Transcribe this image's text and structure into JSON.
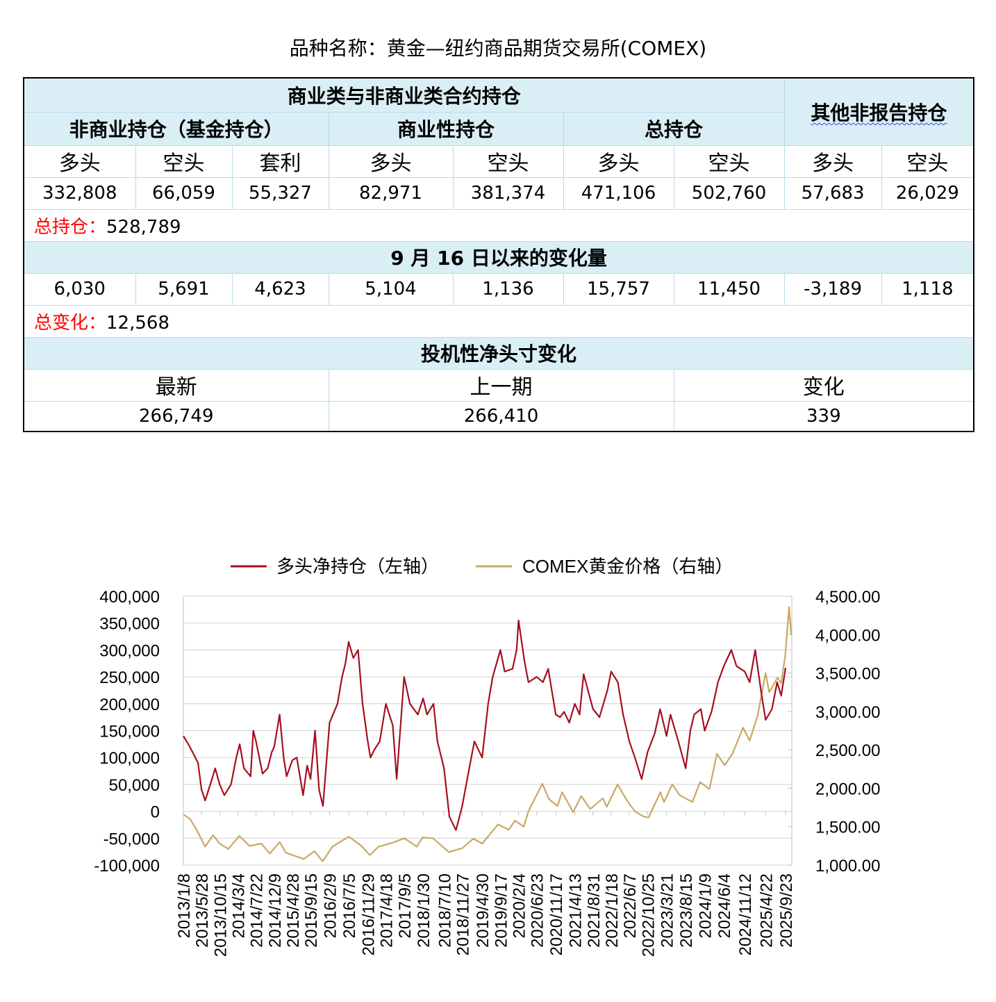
{
  "page_title": "品种名称：黄金—纽约商品期货交易所(COMEX)",
  "table": {
    "group_header": "商业类与非商业类合约持仓",
    "other_header": "其他非报告持仓",
    "noncommercial_header": "非商业持仓（基金持仓）",
    "commercial_header": "商业性持仓",
    "total_header": "总持仓",
    "col_long": "多头",
    "col_short": "空头",
    "col_spread": "套利",
    "positions": {
      "nc_long": "332,808",
      "nc_short": "66,059",
      "nc_spread": "55,327",
      "c_long": "82,971",
      "c_short": "381,374",
      "t_long": "471,106",
      "t_short": "502,760",
      "o_long": "57,683",
      "o_short": "26,029"
    },
    "total_oi_label": "总持仓：",
    "total_oi_value": "528,789",
    "change_header": "9 月 16 日以来的变化量",
    "changes": {
      "nc_long": "6,030",
      "nc_short": "5,691",
      "nc_spread": "4,623",
      "c_long": "5,104",
      "c_short": "1,136",
      "t_long": "15,757",
      "t_short": "11,450",
      "o_long": "-3,189",
      "o_short": "1,118"
    },
    "total_change_label": "总变化：",
    "total_change_value": "12,568",
    "net_header": "投机性净头寸变化",
    "net_cols": [
      "最新",
      "上一期",
      "变化"
    ],
    "net_values": [
      "266,749",
      "266,410",
      "339"
    ]
  },
  "chart_data": {
    "type": "line",
    "legend_position": "top",
    "grid": true,
    "colors": {
      "net_long": "#a50f1e",
      "gold": "#c9a865"
    },
    "series": [
      {
        "name": "多头净持仓（左轴）",
        "axis": "left",
        "points": [
          [
            "2013-01-08",
            140000
          ],
          [
            "2013-02-15",
            125000
          ],
          [
            "2013-03-20",
            110000
          ],
          [
            "2013-05-01",
            90000
          ],
          [
            "2013-05-28",
            40000
          ],
          [
            "2013-06-25",
            20000
          ],
          [
            "2013-08-10",
            55000
          ],
          [
            "2013-09-10",
            80000
          ],
          [
            "2013-10-15",
            50000
          ],
          [
            "2013-11-20",
            30000
          ],
          [
            "2014-01-10",
            50000
          ],
          [
            "2014-02-20",
            100000
          ],
          [
            "2014-03-18",
            125000
          ],
          [
            "2014-04-20",
            80000
          ],
          [
            "2014-06-10",
            65000
          ],
          [
            "2014-07-01",
            150000
          ],
          [
            "2014-07-22",
            130000
          ],
          [
            "2014-09-10",
            70000
          ],
          [
            "2014-10-20",
            80000
          ],
          [
            "2014-11-20",
            110000
          ],
          [
            "2014-12-09",
            120000
          ],
          [
            "2015-01-20",
            180000
          ],
          [
            "2015-02-20",
            100000
          ],
          [
            "2015-03-15",
            65000
          ],
          [
            "2015-04-28",
            95000
          ],
          [
            "2015-06-01",
            100000
          ],
          [
            "2015-07-20",
            30000
          ],
          [
            "2015-08-20",
            85000
          ],
          [
            "2015-09-15",
            60000
          ],
          [
            "2015-10-20",
            150000
          ],
          [
            "2015-11-20",
            40000
          ],
          [
            "2015-12-20",
            10000
          ],
          [
            "2016-02-09",
            165000
          ],
          [
            "2016-04-10",
            200000
          ],
          [
            "2016-05-15",
            250000
          ],
          [
            "2016-06-10",
            275000
          ],
          [
            "2016-07-05",
            315000
          ],
          [
            "2016-08-10",
            285000
          ],
          [
            "2016-09-15",
            300000
          ],
          [
            "2016-10-20",
            200000
          ],
          [
            "2016-11-29",
            130000
          ],
          [
            "2016-12-20",
            100000
          ],
          [
            "2017-01-20",
            115000
          ],
          [
            "2017-03-01",
            130000
          ],
          [
            "2017-04-18",
            200000
          ],
          [
            "2017-06-10",
            160000
          ],
          [
            "2017-07-10",
            60000
          ],
          [
            "2017-09-05",
            250000
          ],
          [
            "2017-10-20",
            200000
          ],
          [
            "2017-12-20",
            180000
          ],
          [
            "2018-01-30",
            210000
          ],
          [
            "2018-03-01",
            180000
          ],
          [
            "2018-04-20",
            200000
          ],
          [
            "2018-05-20",
            130000
          ],
          [
            "2018-07-10",
            80000
          ],
          [
            "2018-08-20",
            -10000
          ],
          [
            "2018-10-10",
            -35000
          ],
          [
            "2018-11-27",
            10000
          ],
          [
            "2019-01-20",
            80000
          ],
          [
            "2019-03-01",
            130000
          ],
          [
            "2019-04-30",
            100000
          ],
          [
            "2019-06-15",
            200000
          ],
          [
            "2019-07-20",
            250000
          ],
          [
            "2019-09-17",
            300000
          ],
          [
            "2019-10-20",
            260000
          ],
          [
            "2019-12-20",
            265000
          ],
          [
            "2020-01-20",
            300000
          ],
          [
            "2020-02-04",
            355000
          ],
          [
            "2020-03-20",
            280000
          ],
          [
            "2020-04-20",
            240000
          ],
          [
            "2020-06-23",
            250000
          ],
          [
            "2020-08-10",
            240000
          ],
          [
            "2020-09-20",
            265000
          ],
          [
            "2020-11-17",
            180000
          ],
          [
            "2020-12-20",
            175000
          ],
          [
            "2021-01-20",
            185000
          ],
          [
            "2021-03-01",
            165000
          ],
          [
            "2021-04-13",
            200000
          ],
          [
            "2021-05-20",
            180000
          ],
          [
            "2021-06-20",
            255000
          ],
          [
            "2021-08-31",
            190000
          ],
          [
            "2021-10-20",
            175000
          ],
          [
            "2021-12-20",
            225000
          ],
          [
            "2022-01-18",
            260000
          ],
          [
            "2022-03-10",
            240000
          ],
          [
            "2022-04-20",
            180000
          ],
          [
            "2022-06-07",
            130000
          ],
          [
            "2022-07-20",
            100000
          ],
          [
            "2022-09-10",
            60000
          ],
          [
            "2022-10-25",
            110000
          ],
          [
            "2022-12-20",
            145000
          ],
          [
            "2023-01-30",
            190000
          ],
          [
            "2023-03-21",
            140000
          ],
          [
            "2023-04-20",
            180000
          ],
          [
            "2023-06-20",
            130000
          ],
          [
            "2023-08-15",
            80000
          ],
          [
            "2023-09-20",
            150000
          ],
          [
            "2023-10-20",
            180000
          ],
          [
            "2023-12-10",
            190000
          ],
          [
            "2024-01-09",
            150000
          ],
          [
            "2024-03-01",
            185000
          ],
          [
            "2024-04-20",
            240000
          ],
          [
            "2024-06-04",
            270000
          ],
          [
            "2024-08-01",
            300000
          ],
          [
            "2024-09-10",
            270000
          ],
          [
            "2024-11-12",
            260000
          ],
          [
            "2024-12-20",
            240000
          ],
          [
            "2025-02-01",
            300000
          ],
          [
            "2025-03-20",
            220000
          ],
          [
            "2025-04-22",
            170000
          ],
          [
            "2025-06-10",
            190000
          ],
          [
            "2025-07-20",
            240000
          ],
          [
            "2025-08-20",
            215000
          ],
          [
            "2025-09-23",
            266749
          ]
        ]
      },
      {
        "name": "COMEX黄金价格（右轴）",
        "axis": "right",
        "points": [
          [
            "2013-01-08",
            1660
          ],
          [
            "2013-03-01",
            1600
          ],
          [
            "2013-04-20",
            1460
          ],
          [
            "2013-06-25",
            1240
          ],
          [
            "2013-08-25",
            1390
          ],
          [
            "2013-10-15",
            1280
          ],
          [
            "2013-12-20",
            1210
          ],
          [
            "2014-03-15",
            1380
          ],
          [
            "2014-06-01",
            1250
          ],
          [
            "2014-09-01",
            1280
          ],
          [
            "2014-11-05",
            1150
          ],
          [
            "2015-01-20",
            1300
          ],
          [
            "2015-03-10",
            1160
          ],
          [
            "2015-07-24",
            1080
          ],
          [
            "2015-10-15",
            1180
          ],
          [
            "2015-12-17",
            1050
          ],
          [
            "2016-03-01",
            1240
          ],
          [
            "2016-07-06",
            1370
          ],
          [
            "2016-10-05",
            1260
          ],
          [
            "2016-12-15",
            1130
          ],
          [
            "2017-02-20",
            1240
          ],
          [
            "2017-06-06",
            1290
          ],
          [
            "2017-09-08",
            1350
          ],
          [
            "2017-12-12",
            1240
          ],
          [
            "2018-01-25",
            1360
          ],
          [
            "2018-04-15",
            1350
          ],
          [
            "2018-08-16",
            1170
          ],
          [
            "2018-11-27",
            1220
          ],
          [
            "2019-02-20",
            1345
          ],
          [
            "2019-05-01",
            1280
          ],
          [
            "2019-08-30",
            1530
          ],
          [
            "2019-11-20",
            1460
          ],
          [
            "2020-01-08",
            1580
          ],
          [
            "2020-03-15",
            1500
          ],
          [
            "2020-04-20",
            1700
          ],
          [
            "2020-08-06",
            2060
          ],
          [
            "2020-09-25",
            1860
          ],
          [
            "2020-11-30",
            1770
          ],
          [
            "2021-01-05",
            1950
          ],
          [
            "2021-03-31",
            1690
          ],
          [
            "2021-06-01",
            1900
          ],
          [
            "2021-08-10",
            1730
          ],
          [
            "2021-11-15",
            1870
          ],
          [
            "2021-12-15",
            1760
          ],
          [
            "2022-03-08",
            2050
          ],
          [
            "2022-05-20",
            1840
          ],
          [
            "2022-07-20",
            1700
          ],
          [
            "2022-09-27",
            1630
          ],
          [
            "2022-11-03",
            1620
          ],
          [
            "2023-02-01",
            1950
          ],
          [
            "2023-03-01",
            1820
          ],
          [
            "2023-05-04",
            2050
          ],
          [
            "2023-06-30",
            1910
          ],
          [
            "2023-10-06",
            1820
          ],
          [
            "2023-12-04",
            2080
          ],
          [
            "2024-02-14",
            1990
          ],
          [
            "2024-04-12",
            2450
          ],
          [
            "2024-06-10",
            2300
          ],
          [
            "2024-08-10",
            2450
          ],
          [
            "2024-10-30",
            2790
          ],
          [
            "2024-12-20",
            2620
          ],
          [
            "2025-02-20",
            2950
          ],
          [
            "2025-04-22",
            3500
          ],
          [
            "2025-05-20",
            3250
          ],
          [
            "2025-07-23",
            3440
          ],
          [
            "2025-08-20",
            3370
          ],
          [
            "2025-09-20",
            3720
          ],
          [
            "2025-10-20",
            4360
          ],
          [
            "2025-11-05",
            4000
          ]
        ]
      }
    ],
    "y_left": {
      "min": -100000,
      "max": 400000,
      "step": 50000,
      "tick_labels": [
        "400,000",
        "350,000",
        "300,000",
        "250,000",
        "200,000",
        "150,000",
        "100,000",
        "50,000",
        "0",
        "-50,000",
        "-100,000"
      ]
    },
    "y_right": {
      "min": 1000,
      "max": 4500,
      "step": 500,
      "tick_labels": [
        "4,500.00",
        "4,000.00",
        "3,500.00",
        "3,000.00",
        "2,500.00",
        "2,000.00",
        "1,500.00",
        "1,000.00"
      ]
    },
    "x_range": [
      "2013-01-08",
      "2025-11-10"
    ],
    "x_tick_labels": [
      "2013/1/8",
      "2013/5/28",
      "2013/10/15",
      "2014/3/4",
      "2014/7/22",
      "2014/12/9",
      "2015/4/28",
      "2015/9/15",
      "2016/2/9",
      "2016/7/5",
      "2016/11/29",
      "2017/4/18",
      "2017/9/5",
      "2018/1/30",
      "2018/7/10",
      "2018/11/27",
      "2019/4/30",
      "2019/9/17",
      "2020/2/4",
      "2020/6/23",
      "2020/11/17",
      "2021/4/13",
      "2021/8/31",
      "2022/1/18",
      "2022/6/7",
      "2022/10/25",
      "2023/3/21",
      "2023/8/15",
      "2024/1/9",
      "2024/6/4",
      "2024/11/12",
      "2025/4/22",
      "2025/9/23"
    ]
  }
}
